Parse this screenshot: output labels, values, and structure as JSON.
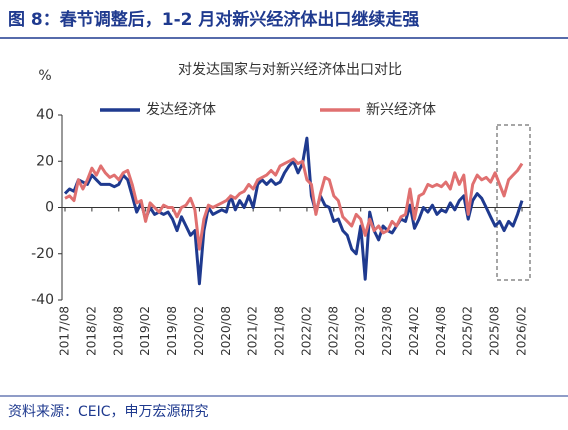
{
  "header": {
    "title": "图 8：春节调整后，1-2 月对新兴经济体出口继续走强"
  },
  "chart_data": {
    "type": "line",
    "title": "对发达国家与对新兴经济体出口对比",
    "y_label": "%",
    "categories": [
      "2017/08",
      null,
      null,
      null,
      null,
      null,
      "2018/02",
      null,
      null,
      null,
      null,
      null,
      "2018/08",
      null,
      null,
      null,
      null,
      null,
      "2019/02",
      null,
      null,
      null,
      null,
      null,
      "2019/08",
      null,
      null,
      null,
      null,
      null,
      "2020/02",
      null,
      null,
      null,
      null,
      null,
      "2020/08",
      null,
      null,
      null,
      null,
      null,
      "2021/02",
      null,
      null,
      null,
      null,
      null,
      "2021/08",
      null,
      null,
      null,
      null,
      null,
      "2022/02",
      null,
      null,
      null,
      null,
      null,
      "2022/08",
      null,
      null,
      null,
      null,
      null,
      "2023/02",
      null,
      null,
      null,
      null,
      null,
      "2023/08",
      null,
      null,
      null,
      null,
      null,
      "2024/02",
      null,
      null,
      null,
      null,
      null,
      "2024/08",
      null,
      null,
      null,
      null,
      null,
      "2025/02",
      null,
      null,
      null,
      null,
      null,
      "2025/08",
      null,
      null,
      null,
      null,
      null,
      "2026/02"
    ],
    "series": [
      {
        "name": "发达经济体",
        "color": "#1f3a8f",
        "values": [
          6,
          8,
          7,
          12,
          11,
          10,
          14,
          12,
          10,
          10,
          10,
          9,
          10,
          14,
          12,
          5,
          -2,
          2,
          -5,
          0,
          -3,
          -2,
          -3,
          -2,
          -5,
          -10,
          -4,
          -8,
          -12,
          -10,
          -33,
          -10,
          0,
          -3,
          -2,
          -1,
          -2,
          5,
          -1,
          3,
          0,
          5,
          0,
          10,
          12,
          10,
          12,
          10,
          11,
          15,
          18,
          20,
          15,
          19,
          30,
          5,
          -2,
          5,
          1,
          0,
          -6,
          -5,
          -10,
          -12,
          -18,
          -20,
          -8,
          -31,
          -2,
          -10,
          -14,
          -8,
          -10,
          -11,
          -8,
          -5,
          -6,
          1,
          -9,
          -5,
          0,
          -2,
          1,
          -3,
          -1,
          -2,
          2,
          -1,
          3,
          5,
          -5,
          3,
          6,
          4,
          0,
          -4,
          -8,
          -6,
          -10,
          -6,
          -8,
          -3,
          3
        ]
      },
      {
        "name": "新兴经济体",
        "color": "#e07070",
        "values": [
          4,
          5,
          3,
          12,
          8,
          12,
          17,
          14,
          18,
          15,
          13,
          14,
          12,
          15,
          16,
          10,
          2,
          3,
          -6,
          2,
          0,
          -2,
          1,
          0,
          0,
          -4,
          0,
          1,
          4,
          -1,
          -18,
          -5,
          1,
          0,
          1,
          2,
          3,
          5,
          4,
          6,
          7,
          10,
          8,
          12,
          13,
          14,
          16,
          14,
          18,
          19,
          20,
          21,
          19,
          20,
          12,
          10,
          -3,
          6,
          13,
          12,
          5,
          3,
          -4,
          -6,
          -8,
          -3,
          -5,
          -12,
          -5,
          -10,
          -8,
          -11,
          -10,
          -6,
          -8,
          -4,
          -3,
          8,
          -5,
          5,
          6,
          10,
          9,
          10,
          9,
          11,
          8,
          15,
          10,
          14,
          -3,
          10,
          14,
          12,
          13,
          11,
          15,
          10,
          5,
          12,
          14,
          16,
          19
        ]
      }
    ],
    "ylim": [
      -40,
      40
    ],
    "yticks": [
      -40,
      -20,
      0,
      20,
      40
    ]
  },
  "source": "资料来源：CEIC，申万宏源研究"
}
